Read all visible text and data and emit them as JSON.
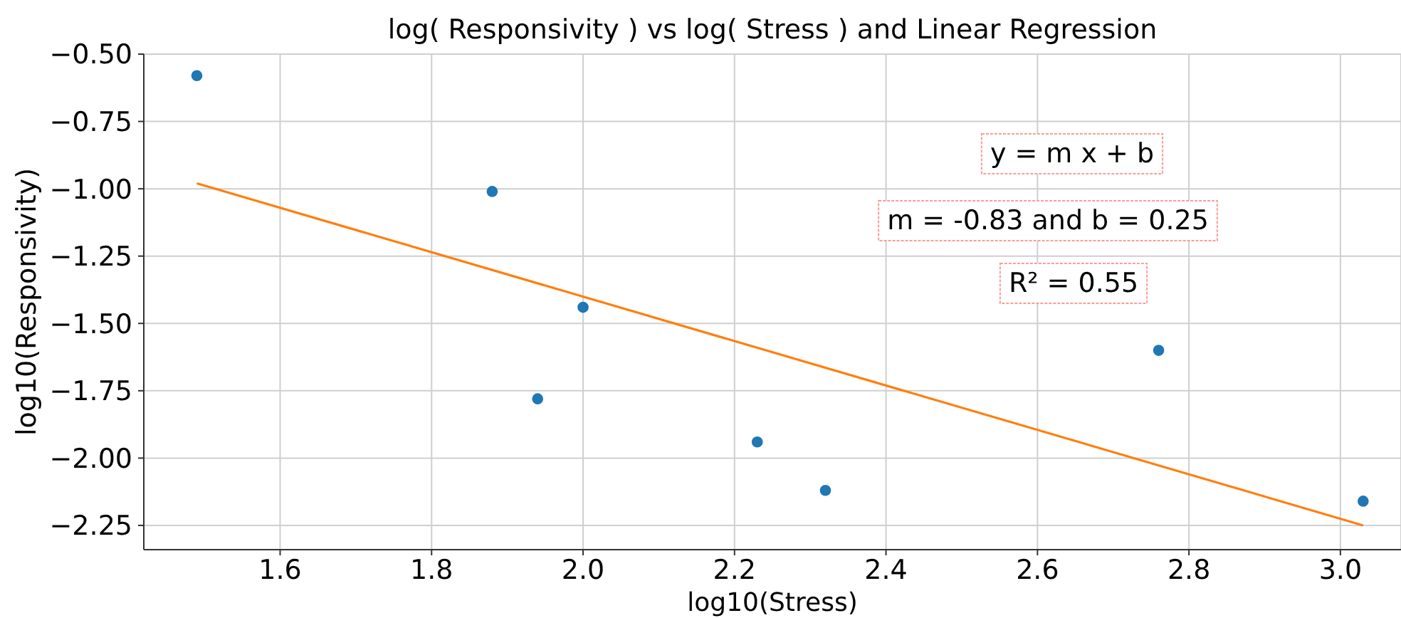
{
  "chart_data": {
    "type": "scatter",
    "title": "log( Responsivity ) vs log( Stress ) and Linear Regression",
    "xlabel": "log10(Stress)",
    "ylabel": "log10(Responsivity)",
    "annotations": [
      "y = m x + b",
      "m = -0.83 and b = 0.25",
      "R² = 0.55"
    ],
    "series": [
      {
        "color": "#1f77b4",
        "marker": "circle",
        "x": [
          1.49,
          1.88,
          1.94,
          2.0,
          2.23,
          2.32,
          2.76,
          3.03
        ],
        "values": [
          -0.58,
          -1.01,
          -1.78,
          -1.44,
          -1.94,
          -2.12,
          -1.6,
          -2.16
        ]
      },
      {
        "type": "line",
        "color": "#ff7f0e",
        "x": [
          1.49,
          3.03
        ],
        "values": [
          -0.98,
          -2.25
        ]
      }
    ],
    "xlim": [
      1.42,
      3.08
    ],
    "xticks": [
      1.6,
      1.8,
      {
        "value": 2,
        "label": "2.0"
      },
      2.2,
      2.4,
      2.6,
      2.8,
      {
        "value": 3,
        "label": "3.0"
      }
    ],
    "ylim": [
      -2.34,
      -0.5
    ],
    "yticks": [
      {
        "value": -0.5,
        "label": "−0.50"
      },
      {
        "value": -0.75,
        "label": "−0.75"
      },
      {
        "value": -1,
        "label": "−1.00"
      },
      {
        "value": -1.25,
        "label": "−1.25"
      },
      {
        "value": -1.5,
        "label": "−1.50"
      },
      {
        "value": -1.75,
        "label": "−1.75"
      },
      {
        "value": -2,
        "label": "−2.00"
      },
      {
        "value": -2.25,
        "label": "−2.25"
      }
    ],
    "grid": true,
    "line_style": "solid"
  }
}
